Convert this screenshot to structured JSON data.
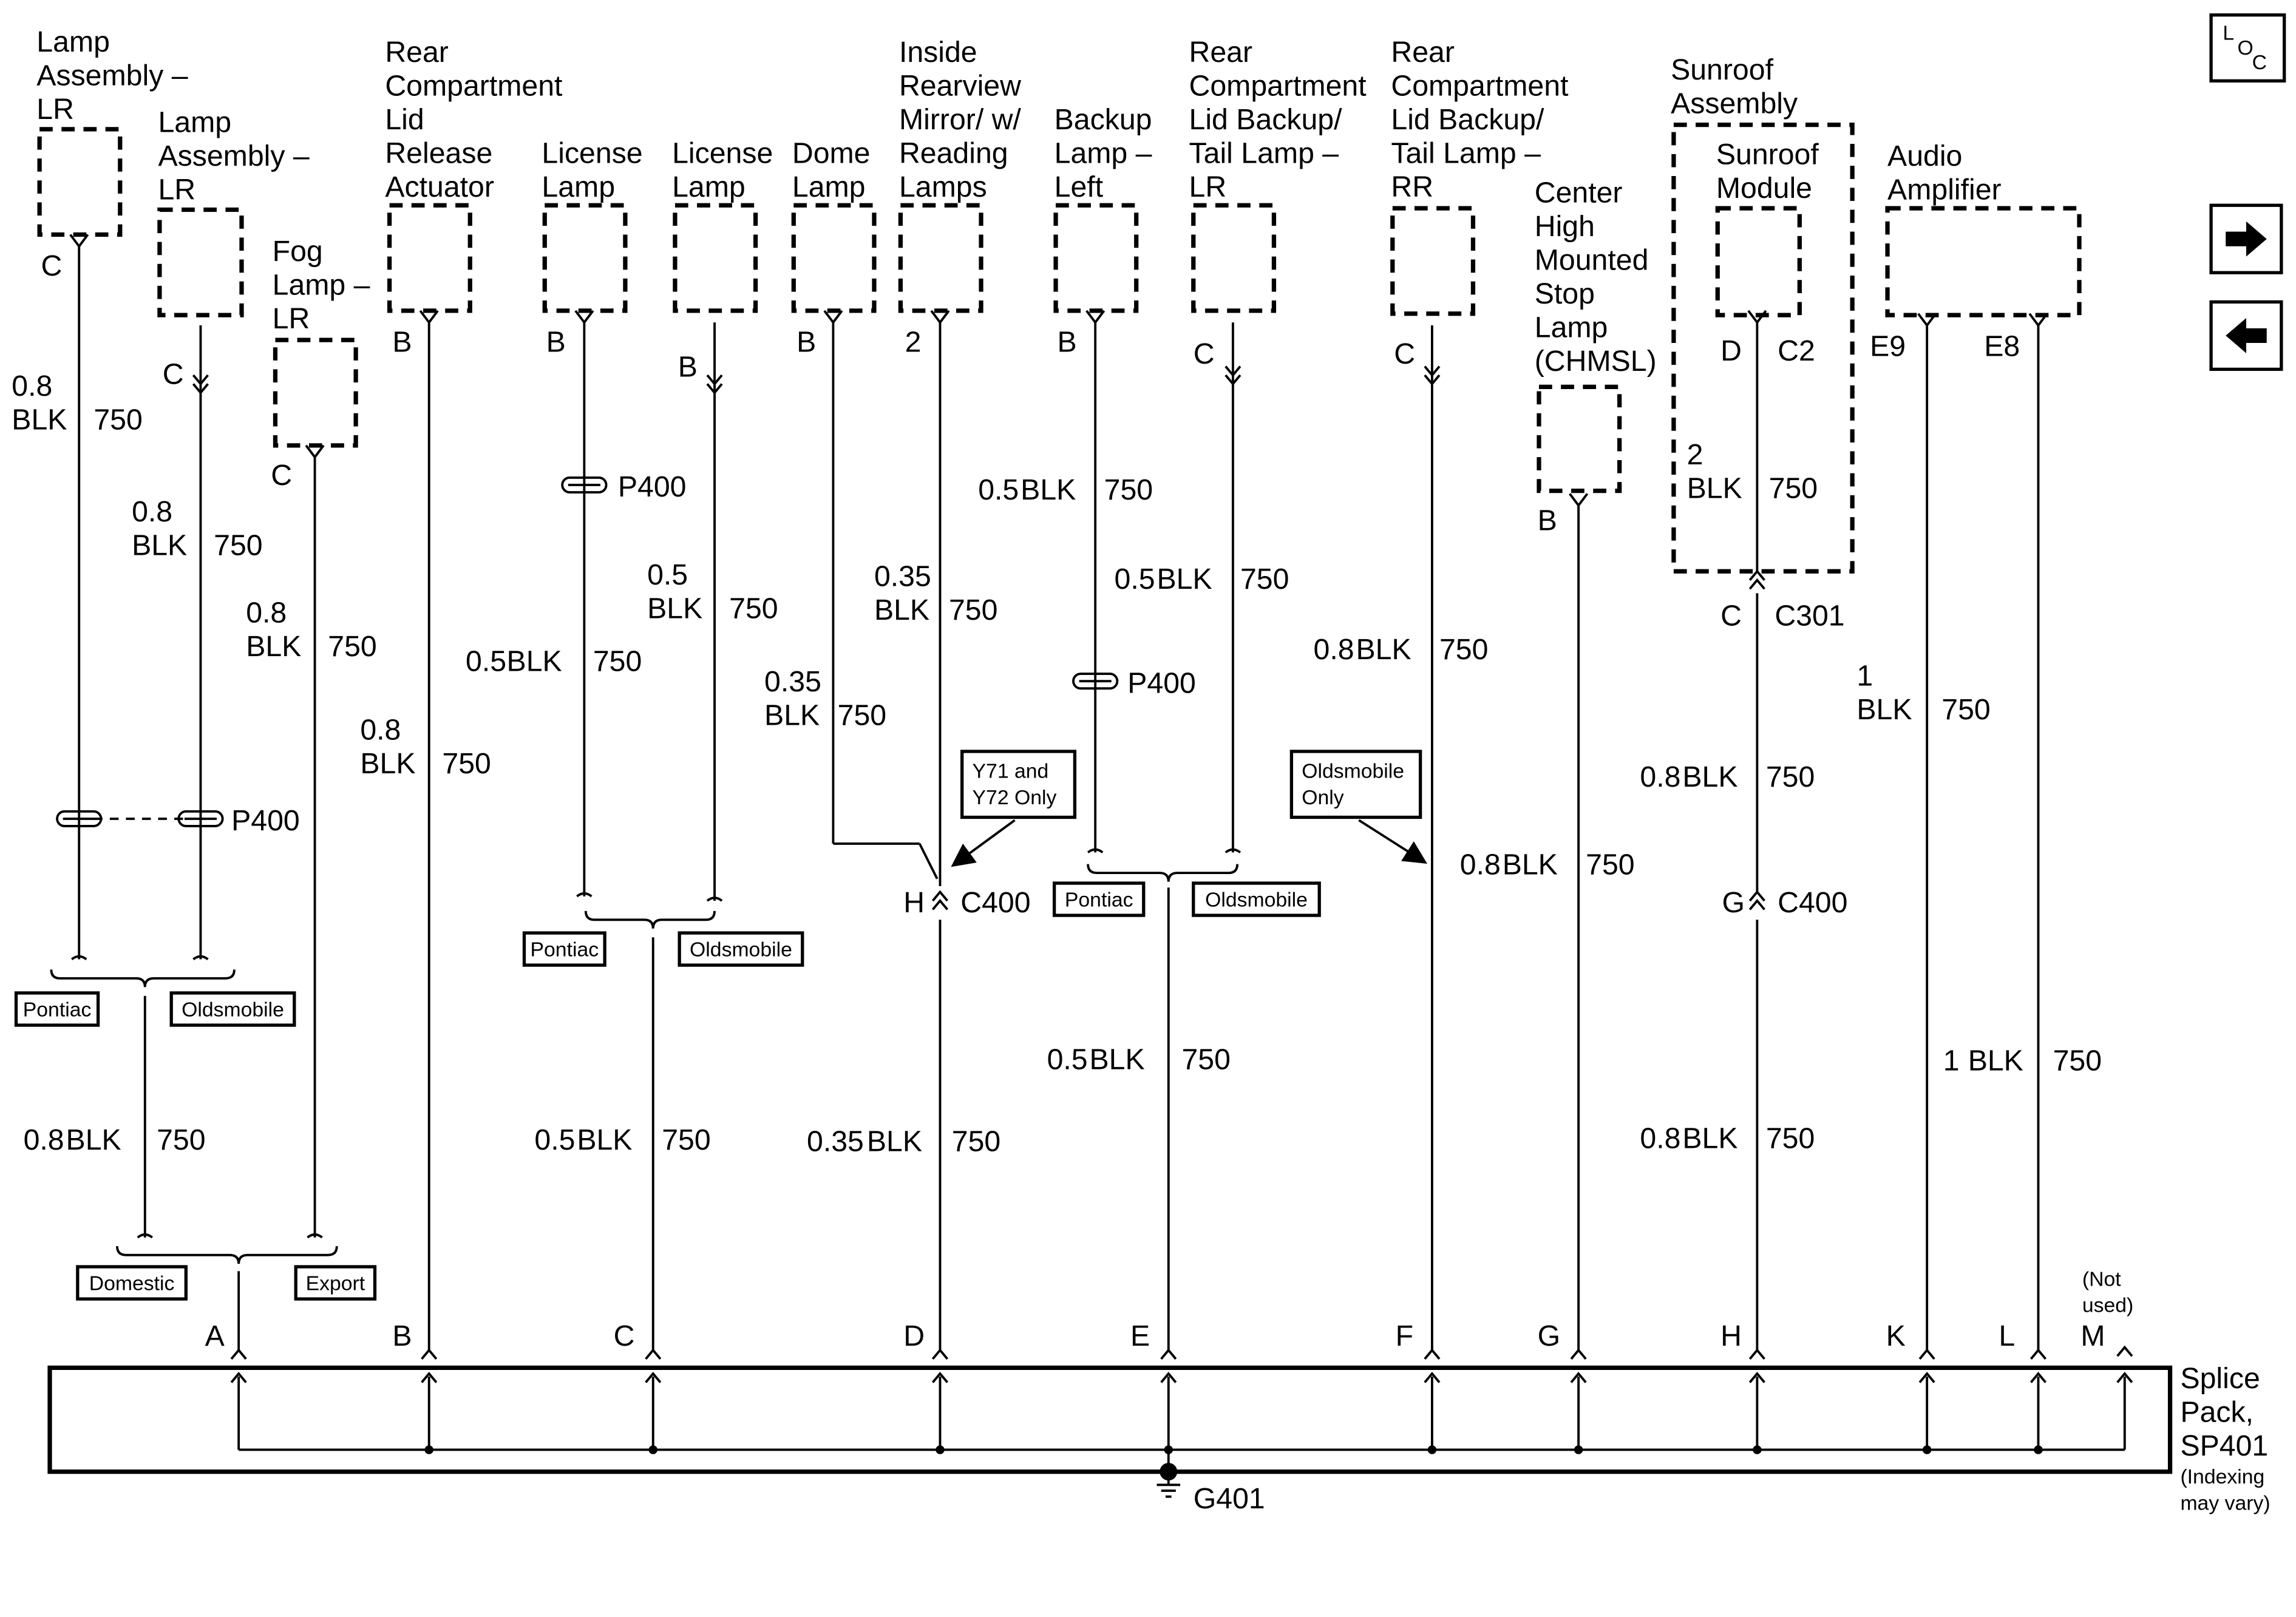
{
  "loc_icon": {
    "letters": [
      "L",
      "O",
      "C"
    ]
  },
  "components": [
    {
      "name": [
        "Lamp",
        "Assembly –",
        "LR"
      ],
      "pin": "C"
    },
    {
      "name": [
        "Lamp",
        "Assembly –",
        "LR"
      ],
      "pin": "C"
    },
    {
      "name": [
        "Fog",
        "Lamp –",
        "LR"
      ],
      "pin": "C"
    },
    {
      "name": [
        "Rear",
        "Compartment",
        "Lid",
        "Release",
        "Actuator"
      ],
      "pin": "B"
    },
    {
      "name": [
        "License",
        "Lamp"
      ],
      "pin": "B"
    },
    {
      "name": [
        "License",
        "Lamp"
      ],
      "pin": "B"
    },
    {
      "name": [
        "Dome",
        "Lamp"
      ],
      "pin": "B"
    },
    {
      "name": [
        "Inside",
        "Rearview",
        "Mirror/ w/",
        "Reading",
        "Lamps"
      ],
      "pin": "2"
    },
    {
      "name": [
        "Backup",
        "Lamp –",
        "Left"
      ],
      "pin": "B"
    },
    {
      "name": [
        "Rear",
        "Compartment",
        "Lid Backup/",
        "Tail Lamp –",
        "LR"
      ],
      "pin": "C"
    },
    {
      "name": [
        "Rear",
        "Compartment",
        "Lid Backup/",
        "Tail Lamp –",
        "RR"
      ],
      "pin": "C"
    },
    {
      "name": [
        "Center",
        "High",
        "Mounted",
        "Stop",
        "Lamp",
        "(CHMSL)"
      ],
      "pin": "B"
    },
    {
      "name": [
        "Sunroof",
        "Module"
      ],
      "pin": "D",
      "connector": "C2"
    },
    {
      "name": [
        "Audio",
        "Amplifier"
      ],
      "pins": [
        "E9",
        "E8"
      ]
    }
  ],
  "sunroof_assembly": [
    "Sunroof",
    "Assembly"
  ],
  "wires": [
    {
      "size": "0.8",
      "color": "BLK",
      "circuit": "750"
    },
    {
      "size": "0.8",
      "color": "BLK",
      "circuit": "750"
    },
    {
      "size": "0.8",
      "color": "BLK",
      "circuit": "750"
    },
    {
      "size": "0.8",
      "color": "BLK",
      "circuit": "750"
    },
    {
      "size": "0.5",
      "color": "BLK",
      "circuit": "750"
    },
    {
      "size": "0.5",
      "color": "BLK",
      "circuit": "750"
    },
    {
      "size": "0.35",
      "color": "BLK",
      "circuit": "750"
    },
    {
      "size": "0.35",
      "color": "BLK",
      "circuit": "750"
    },
    {
      "size": "0.5",
      "color": "BLK",
      "circuit": "750"
    },
    {
      "size": "0.5",
      "color": "BLK",
      "circuit": "750"
    },
    {
      "size": "0.8",
      "color": "BLK",
      "circuit": "750"
    },
    {
      "size": "0.8",
      "color": "BLK",
      "circuit": "750"
    },
    {
      "size": "2",
      "color": "BLK",
      "circuit": "750"
    },
    {
      "size": "0.8",
      "color": "BLK",
      "circuit": "750"
    },
    {
      "size": "1",
      "color": "BLK",
      "circuit": "750"
    },
    {
      "size": "0.8",
      "color": "BLK",
      "circuit": "750"
    },
    {
      "size": "0.5",
      "color": "BLK",
      "circuit": "750"
    },
    {
      "size": "0.35",
      "color": "BLK",
      "circuit": "750"
    },
    {
      "size": "0.5",
      "color": "BLK",
      "circuit": "750"
    },
    {
      "size": "1",
      "color": "BLK",
      "circuit": "750"
    },
    {
      "size": "0.8",
      "color": "BLK",
      "circuit": "750"
    }
  ],
  "inline_connectors": [
    {
      "name": "P400"
    },
    {
      "name": "P400"
    },
    {
      "name": "P400"
    },
    {
      "name": "C400",
      "pin": "H"
    },
    {
      "name": "C301",
      "pin": "C"
    },
    {
      "name": "C400",
      "pin": "G"
    }
  ],
  "options": [
    {
      "left": "Pontiac",
      "right": "Oldsmobile"
    },
    {
      "left": "Pontiac",
      "right": "Oldsmobile"
    },
    {
      "left": "Pontiac",
      "right": "Oldsmobile"
    },
    {
      "left": "Domestic",
      "right": "Export"
    }
  ],
  "notes": [
    [
      "Y71 and",
      "Y72 Only"
    ],
    [
      "Oldsmobile",
      "Only"
    ]
  ],
  "splice_pack": {
    "name": [
      "Splice",
      "Pack,",
      "SP401"
    ],
    "note": [
      "(Indexing",
      "may vary)"
    ],
    "pins": [
      "A",
      "B",
      "C",
      "D",
      "E",
      "F",
      "G",
      "H",
      "K",
      "L",
      "M"
    ],
    "unused_note": [
      "(Not",
      "used)"
    ],
    "ground": "G401"
  }
}
